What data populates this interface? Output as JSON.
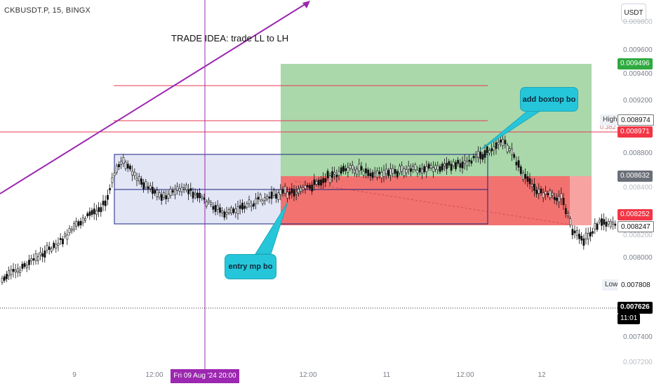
{
  "header": {
    "symbol_line": "CKBUSDT.P, 15, BINGX",
    "currency": "USDT"
  },
  "idea_text": "TRADE IDEA: trade LL to LH",
  "callouts": {
    "top": "add boxtop bo",
    "bottom": "entry mp bo"
  },
  "price_axis": {
    "ticks": [
      "0.009800",
      "0.009600",
      "0.009400",
      "0.009200",
      "0.008800",
      "0.008400",
      "0.008200",
      "0.008000",
      "0.007400",
      "0.007200"
    ],
    "fib_stub": "0.382",
    "badges": {
      "target": "0.009496",
      "high_label": "High",
      "high_value": "0.008974",
      "hline": "0.008971",
      "entry": "0.008632",
      "stop": "0.008252",
      "last": "0.008247",
      "low_label": "Low",
      "low_value": "0.007808",
      "current": "0.007626",
      "countdown": "11:01"
    }
  },
  "time_axis": {
    "ticks": [
      "9",
      "12:00",
      "12:00",
      "11",
      "12:00",
      "12"
    ],
    "cursor_label": "Fri 09 Aug '24   20:00"
  },
  "colors": {
    "target_zone": "#a5d6a7",
    "stop_zone": "#ef5350",
    "range_box": "#1a237e",
    "trend_line": "#9c27b0",
    "price_lines": "#e53950",
    "callout": "#26c6da",
    "candle": "#111111"
  }
}
